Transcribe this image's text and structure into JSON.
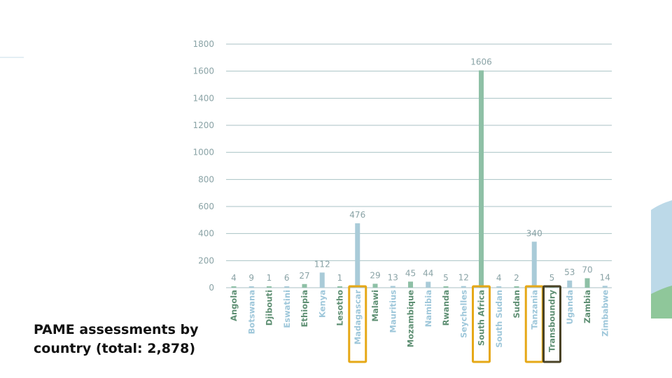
{
  "caption": {
    "line1": "PAME assessments by",
    "line2": "country (total: 2,878)"
  },
  "colors": {
    "gridline": "#a9c2c4",
    "label_text": "#8aa3a6",
    "series_a": "#8ec0a6",
    "series_b": "#a9cbd8",
    "label_a": "#5e8f73",
    "label_b": "#9ec7da",
    "highlight_gold": "#e6a817",
    "highlight_dark": "#4a4326",
    "deco_blue": "#bcd9e8",
    "deco_green": "#8fc79a",
    "deco_line": "#c9dfea"
  },
  "chart_data": {
    "type": "bar",
    "title": "PAME assessments by country (total: 2,878)",
    "xlabel": "",
    "ylabel": "",
    "ylim": [
      0,
      1800
    ],
    "yticks": [
      0,
      200,
      400,
      600,
      800,
      1000,
      1200,
      1400,
      1600,
      1800
    ],
    "grid": true,
    "categories": [
      "Angola",
      "Botswana",
      "Djibouti",
      "Eswatini",
      "Ethiopia",
      "Kenya",
      "Lesotho",
      "Madagascar",
      "Malawi",
      "Mauritius",
      "Mozambique",
      "Namibia",
      "Rwanda",
      "Seychelles",
      "South Africa",
      "South Sudan",
      "Sudan",
      "Tanzania",
      "Transboundry",
      "Uganda",
      "Zambia",
      "Zimbabwe"
    ],
    "values": [
      4,
      9,
      1,
      6,
      27,
      112,
      1,
      476,
      29,
      13,
      45,
      44,
      5,
      12,
      1606,
      4,
      2,
      340,
      5,
      53,
      70,
      14
    ],
    "highlighted": [
      {
        "category": "Madagascar",
        "style": "gold"
      },
      {
        "category": "South Africa",
        "style": "gold"
      },
      {
        "category": "Tanzania",
        "style": "gold"
      },
      {
        "category": "Transboundry",
        "style": "dark"
      }
    ]
  }
}
